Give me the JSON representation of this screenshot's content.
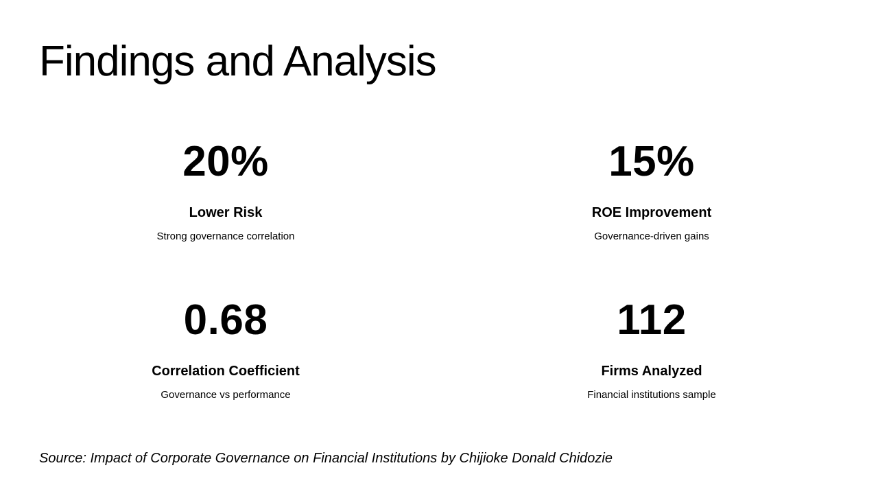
{
  "slide": {
    "title": "Findings and Analysis",
    "stats": [
      {
        "value": "20%",
        "label": "Lower Risk",
        "description": "Strong governance correlation"
      },
      {
        "value": "15%",
        "label": "ROE Improvement",
        "description": "Governance-driven gains"
      },
      {
        "value": "0.68",
        "label": "Correlation Coefficient",
        "description": "Governance vs performance"
      },
      {
        "value": "112",
        "label": "Firms Analyzed",
        "description": "Financial institutions sample"
      }
    ],
    "source": "Source: Impact of Corporate Governance on Financial Institutions by Chijioke Donald Chidozie"
  },
  "colors": {
    "background": "#ffffff",
    "text": "#000000"
  }
}
